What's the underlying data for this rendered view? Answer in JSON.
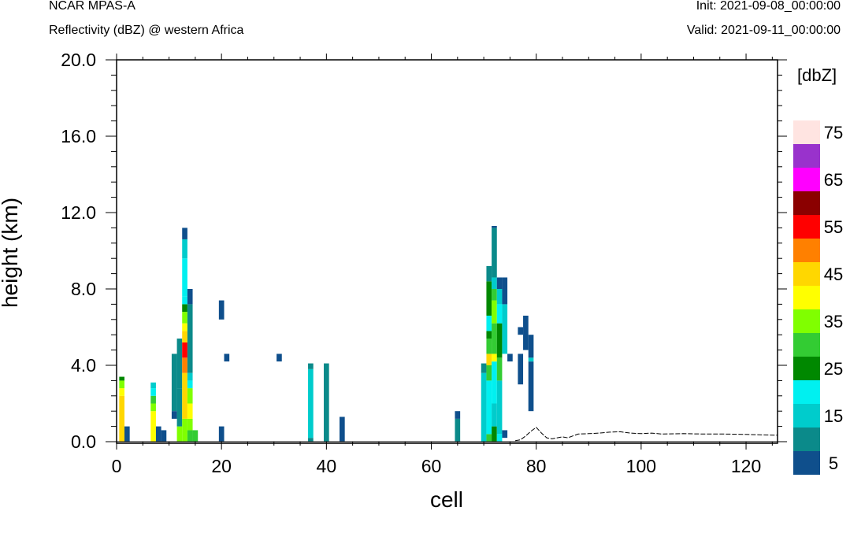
{
  "header": {
    "model": "NCAR MPAS-A",
    "field": "Reflectivity (dBZ) @ western Africa",
    "init": "Init: 2021-09-08_00:00:00",
    "valid": "Valid: 2021-09-11_00:00:00"
  },
  "colors": {
    "levels": [
      "#0f4f8c",
      "#0b8a8a",
      "#00cccc",
      "#00f0f0",
      "#008800",
      "#33cc33",
      "#80ff00",
      "#ffff00",
      "#ffd700",
      "#ff8000",
      "#ff0000",
      "#8b0000",
      "#ff00ff",
      "#9932cc",
      "#ffe4e1"
    ]
  },
  "chart_data": {
    "type": "heatmap",
    "xlabel": "cell",
    "ylabel": "height (km)",
    "xlim": [
      0,
      126
    ],
    "ylim": [
      0,
      20
    ],
    "x_ticks": [
      "0",
      "20",
      "40",
      "60",
      "80",
      "100",
      "120"
    ],
    "x_tick_values": [
      0,
      20,
      40,
      60,
      80,
      100,
      120
    ],
    "y_ticks": [
      "0.0",
      "4.0",
      "8.0",
      "12.0",
      "16.0",
      "20.0"
    ],
    "y_tick_values": [
      0,
      4,
      8,
      12,
      16,
      20
    ],
    "colorbar": {
      "unit": "[dbZ]",
      "levels": [
        5,
        10,
        15,
        20,
        25,
        30,
        35,
        40,
        45,
        50,
        55,
        60,
        65,
        70,
        75
      ],
      "labels": [
        "5",
        "15",
        "25",
        "35",
        "45",
        "55",
        "65",
        "75"
      ]
    },
    "cells": [
      {
        "x": 1,
        "bands": [
          [
            0,
            2.4,
            45
          ],
          [
            2.4,
            2.8,
            40
          ],
          [
            2.8,
            3.2,
            35
          ],
          [
            3.2,
            3.4,
            25
          ]
        ]
      },
      {
        "x": 2,
        "bands": [
          [
            0,
            0.8,
            5
          ]
        ]
      },
      {
        "x": 7,
        "bands": [
          [
            0,
            1.6,
            40
          ],
          [
            1.6,
            2.0,
            35
          ],
          [
            2.0,
            2.4,
            30
          ],
          [
            2.4,
            2.8,
            20
          ],
          [
            2.8,
            3.1,
            15
          ]
        ]
      },
      {
        "x": 8,
        "bands": [
          [
            0,
            0.8,
            5
          ]
        ]
      },
      {
        "x": 9,
        "bands": [
          [
            0,
            0.6,
            5
          ]
        ]
      },
      {
        "x": 11,
        "bands": [
          [
            1.6,
            4.6,
            10
          ],
          [
            1.2,
            1.6,
            5
          ]
        ]
      },
      {
        "x": 12,
        "bands": [
          [
            0,
            0.8,
            35
          ],
          [
            0.8,
            2.8,
            10
          ],
          [
            2.8,
            5.4,
            10
          ]
        ]
      },
      {
        "x": 13,
        "bands": [
          [
            0,
            1.2,
            35
          ],
          [
            1.2,
            3.6,
            45
          ],
          [
            3.6,
            4.4,
            50
          ],
          [
            4.4,
            5.2,
            55
          ],
          [
            5.2,
            5.8,
            45
          ],
          [
            5.8,
            6.2,
            40
          ],
          [
            6.2,
            6.8,
            35
          ],
          [
            6.8,
            7.2,
            25
          ],
          [
            7.2,
            7.6,
            20
          ],
          [
            7.6,
            9.6,
            20
          ],
          [
            9.6,
            10.6,
            15
          ],
          [
            10.6,
            11.2,
            5
          ]
        ]
      },
      {
        "x": 14,
        "bands": [
          [
            0,
            0.6,
            30
          ],
          [
            0.6,
            1.2,
            35
          ],
          [
            1.2,
            2.0,
            40
          ],
          [
            2.0,
            2.8,
            35
          ],
          [
            2.8,
            3.2,
            20
          ],
          [
            3.2,
            3.6,
            15
          ],
          [
            3.6,
            7.2,
            10
          ],
          [
            7.2,
            8.0,
            5
          ]
        ]
      },
      {
        "x": 15,
        "bands": [
          [
            0,
            0.6,
            30
          ]
        ]
      },
      {
        "x": 20,
        "bands": [
          [
            0,
            0.8,
            5
          ],
          [
            6.4,
            7.4,
            5
          ]
        ]
      },
      {
        "x": 21,
        "bands": [
          [
            4.2,
            4.6,
            5
          ]
        ]
      },
      {
        "x": 31,
        "bands": [
          [
            4.2,
            4.6,
            5
          ]
        ]
      },
      {
        "x": 37,
        "bands": [
          [
            0,
            0.2,
            10
          ],
          [
            0.2,
            3.8,
            15
          ],
          [
            3.8,
            4.1,
            10
          ]
        ]
      },
      {
        "x": 40,
        "bands": [
          [
            0,
            4.1,
            10
          ]
        ]
      },
      {
        "x": 43,
        "bands": [
          [
            0,
            1.3,
            5
          ]
        ]
      },
      {
        "x": 65,
        "bands": [
          [
            0,
            1.2,
            10
          ],
          [
            1.2,
            1.6,
            5
          ]
        ]
      },
      {
        "x": 70,
        "bands": [
          [
            0,
            3.6,
            15
          ],
          [
            3.6,
            4.1,
            10
          ]
        ]
      },
      {
        "x": 71,
        "bands": [
          [
            0,
            0.4,
            30
          ],
          [
            0.4,
            3.2,
            20
          ],
          [
            3.2,
            4.0,
            30
          ],
          [
            4.0,
            4.6,
            45
          ],
          [
            4.6,
            5.4,
            30
          ],
          [
            5.4,
            5.8,
            25
          ],
          [
            5.8,
            6.6,
            20
          ],
          [
            6.6,
            8.4,
            25
          ],
          [
            8.4,
            9.2,
            10
          ]
        ]
      },
      {
        "x": 72,
        "bands": [
          [
            0,
            0.8,
            25
          ],
          [
            0.8,
            2.0,
            15
          ],
          [
            2.0,
            4.2,
            20
          ],
          [
            4.2,
            4.6,
            40
          ],
          [
            4.6,
            6.2,
            30
          ],
          [
            6.2,
            7.4,
            35
          ],
          [
            7.4,
            8.0,
            30
          ],
          [
            8.0,
            8.6,
            15
          ],
          [
            8.6,
            11.2,
            10
          ],
          [
            11.2,
            11.3,
            5
          ]
        ]
      },
      {
        "x": 73,
        "bands": [
          [
            0,
            0.4,
            20
          ],
          [
            0.4,
            3.2,
            15
          ],
          [
            3.2,
            4.4,
            30
          ],
          [
            4.4,
            6.2,
            25
          ],
          [
            6.2,
            7.2,
            20
          ],
          [
            7.2,
            8.0,
            15
          ],
          [
            8.0,
            8.6,
            5
          ]
        ]
      },
      {
        "x": 74,
        "bands": [
          [
            0.2,
            0.6,
            5
          ],
          [
            4.6,
            7.2,
            15
          ],
          [
            7.2,
            8.6,
            5
          ]
        ]
      },
      {
        "x": 75,
        "bands": [
          [
            4.2,
            4.6,
            5
          ]
        ]
      },
      {
        "x": 77,
        "bands": [
          [
            3.0,
            4.6,
            5
          ],
          [
            5.6,
            6.0,
            5
          ]
        ]
      },
      {
        "x": 78,
        "bands": [
          [
            4.8,
            6.6,
            5
          ]
        ]
      },
      {
        "x": 79,
        "bands": [
          [
            1.6,
            4.2,
            5
          ],
          [
            4.2,
            4.4,
            15
          ],
          [
            4.4,
            5.6,
            5
          ]
        ]
      }
    ],
    "terrain": [
      [
        76,
        0.05
      ],
      [
        77,
        0.1
      ],
      [
        78,
        0.3
      ],
      [
        79,
        0.55
      ],
      [
        80,
        0.75
      ],
      [
        81,
        0.45
      ],
      [
        82,
        0.2
      ],
      [
        83,
        0.15
      ],
      [
        84,
        0.2
      ],
      [
        85,
        0.25
      ],
      [
        86,
        0.2
      ],
      [
        87,
        0.3
      ],
      [
        88,
        0.4
      ],
      [
        90,
        0.42
      ],
      [
        92,
        0.45
      ],
      [
        94,
        0.5
      ],
      [
        96,
        0.52
      ],
      [
        98,
        0.45
      ],
      [
        100,
        0.42
      ],
      [
        102,
        0.45
      ],
      [
        104,
        0.4
      ],
      [
        108,
        0.42
      ],
      [
        112,
        0.4
      ],
      [
        116,
        0.4
      ],
      [
        120,
        0.38
      ],
      [
        124,
        0.35
      ],
      [
        126,
        0.34
      ]
    ]
  }
}
